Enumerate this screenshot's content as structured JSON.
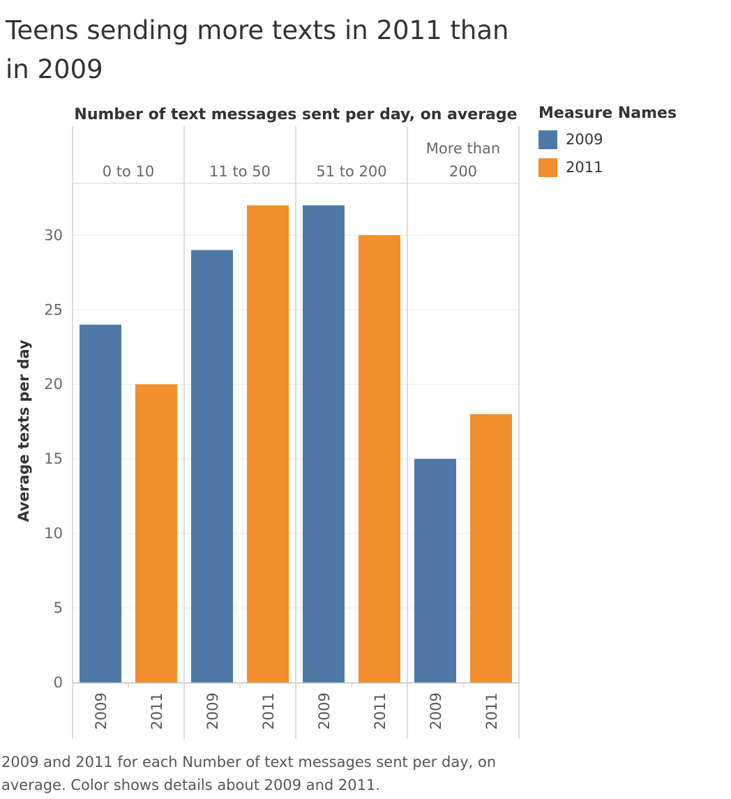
{
  "title": "Teens sending more texts in 2011 than in 2009",
  "caption": "2009 and 2011 for each Number of text messages sent per day, on average.  Color shows details about 2009 and 2011.",
  "colors": {
    "2009": "#4e79a7",
    "2011": "#f28e2b"
  },
  "legend": {
    "title": "Measure Names",
    "items": [
      {
        "label": "2009",
        "color": "#4e79a7"
      },
      {
        "label": "2011",
        "color": "#f28e2b"
      }
    ]
  },
  "chart_data": {
    "type": "bar",
    "column_header": "Number of text messages sent per day, on average",
    "ylabel": "Average texts per day",
    "ylim": [
      0,
      32.5
    ],
    "yticks": [
      0,
      5,
      10,
      15,
      20,
      25,
      30
    ],
    "grid": true,
    "legend_position": "top-right",
    "categories": [
      {
        "label_lines": [
          "0 to 10"
        ]
      },
      {
        "label_lines": [
          "11 to 50"
        ]
      },
      {
        "label_lines": [
          "51 to 200"
        ]
      },
      {
        "label_lines": [
          "More than",
          "200"
        ]
      }
    ],
    "series": [
      {
        "name": "2009",
        "values": [
          24,
          29,
          32,
          15
        ]
      },
      {
        "name": "2011",
        "values": [
          20,
          32,
          30,
          18
        ]
      }
    ]
  }
}
